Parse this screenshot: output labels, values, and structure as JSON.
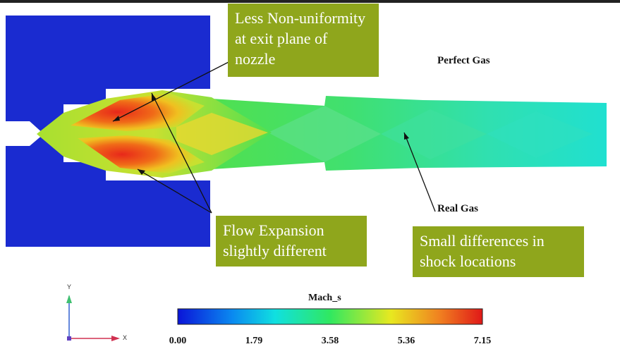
{
  "callouts": {
    "nozzle_exit": "Less Non-uniformity at exit plane of nozzle",
    "flow_expansion": "Flow Expansion slightly different",
    "shock_locations": "Small differences in shock locations"
  },
  "labels": {
    "perfect_gas": "Perfect Gas",
    "real_gas": "Real Gas"
  },
  "colorbar": {
    "title": "Mach_s",
    "ticks": [
      "0.00",
      "1.79",
      "3.58",
      "5.36",
      "7.15"
    ]
  },
  "axes": {
    "y_letter": "Y",
    "x_letter": "X"
  },
  "colors": {
    "solid_blue": "#1a2bd0",
    "callout_bg": "#8fa61c",
    "jet_green": "#3ee86a",
    "hot_red": "#e8321a"
  }
}
